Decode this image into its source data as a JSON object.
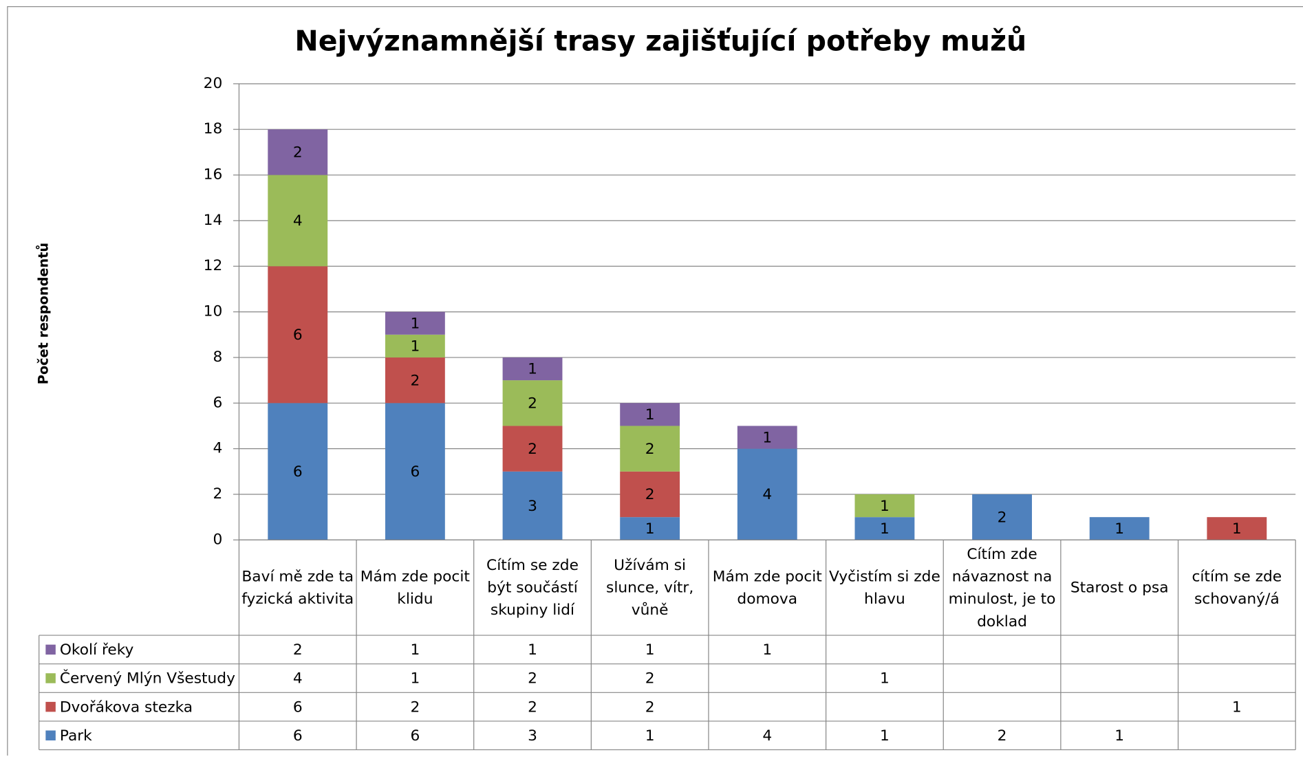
{
  "chart_data": {
    "type": "stacked_bar",
    "title": "Nejvýznamnější trasy zajišťující  potřeby mužů",
    "ylabel": "Počet respondentů",
    "categories": [
      "Baví mě zde ta fyzická aktivita",
      "Mám zde pocit klidu",
      "Cítím se zde být součástí skupiny lidí",
      "Užívám si slunce, vítr, vůně",
      "Mám zde pocit domova",
      "Vyčistím si zde hlavu",
      "Cítím zde návaznost na minulost, je to doklad",
      "Starost o psa",
      "cítím se zde schovaný/á"
    ],
    "series": [
      {
        "name": "Park",
        "color": "#4f81bd",
        "values": [
          6,
          6,
          3,
          1,
          4,
          1,
          2,
          1,
          null
        ]
      },
      {
        "name": "Dvořákova stezka",
        "color": "#c0504d",
        "values": [
          6,
          2,
          2,
          2,
          null,
          null,
          null,
          null,
          1
        ]
      },
      {
        "name": "Červený Mlýn Všestudy",
        "color": "#9bbb59",
        "values": [
          4,
          1,
          2,
          2,
          null,
          1,
          null,
          null,
          null
        ]
      },
      {
        "name": "Okolí řeky",
        "color": "#8064a2",
        "values": [
          2,
          1,
          1,
          1,
          1,
          null,
          null,
          null,
          null
        ]
      }
    ],
    "ylim": [
      0,
      20
    ],
    "yticks": [
      0,
      2,
      4,
      6,
      8,
      10,
      12,
      14,
      16,
      18,
      20
    ],
    "grid": true,
    "legend": "table"
  }
}
